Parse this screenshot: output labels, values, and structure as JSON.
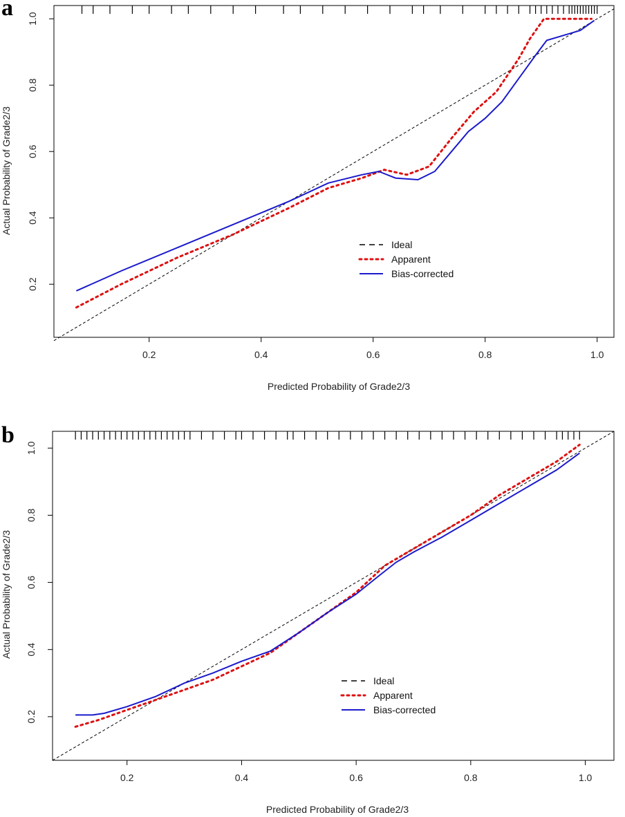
{
  "chart_data": [
    {
      "panel_label": "a",
      "type": "line",
      "title": "",
      "xlabel": "Predicted Probability of Grade2/3",
      "ylabel": "Actual Probability of Grade2/3",
      "xlim": [
        0.03,
        1.03
      ],
      "ylim": [
        0.04,
        1.04
      ],
      "xticks": [
        0.2,
        0.4,
        0.6,
        0.8,
        1.0
      ],
      "xtick_labels": [
        "0.2",
        "0.4",
        "0.6",
        "0.8",
        "1.0"
      ],
      "yticks": [
        0.2,
        0.4,
        0.6,
        0.8,
        1.0
      ],
      "ytick_labels": [
        "0.2",
        "0.4",
        "0.6",
        "0.8",
        "1.0"
      ],
      "legend_position": "center-right",
      "series": [
        {
          "name": "Ideal",
          "style": "dashed",
          "color": "#000000",
          "x": [
            0.03,
            1.03
          ],
          "y": [
            0.03,
            1.03
          ]
        },
        {
          "name": "Apparent",
          "style": "dotted",
          "color": "#dd1111",
          "x": [
            0.07,
            0.15,
            0.25,
            0.35,
            0.45,
            0.52,
            0.58,
            0.62,
            0.66,
            0.7,
            0.74,
            0.78,
            0.82,
            0.86,
            0.88,
            0.905,
            0.95,
            0.99
          ],
          "y": [
            0.13,
            0.2,
            0.28,
            0.35,
            0.43,
            0.49,
            0.52,
            0.545,
            0.53,
            0.555,
            0.64,
            0.72,
            0.78,
            0.88,
            0.94,
            1.0,
            1.0,
            1.0
          ]
        },
        {
          "name": "Bias-corrected",
          "style": "solid",
          "color": "#1a1acc",
          "x": [
            0.07,
            0.15,
            0.25,
            0.35,
            0.45,
            0.52,
            0.58,
            0.61,
            0.64,
            0.68,
            0.71,
            0.74,
            0.77,
            0.8,
            0.83,
            0.86,
            0.89,
            0.91,
            0.95,
            0.97,
            0.995
          ],
          "y": [
            0.18,
            0.24,
            0.31,
            0.38,
            0.45,
            0.505,
            0.53,
            0.54,
            0.52,
            0.515,
            0.54,
            0.6,
            0.66,
            0.7,
            0.75,
            0.82,
            0.89,
            0.935,
            0.955,
            0.965,
            0.995
          ]
        }
      ],
      "rug": [
        0.08,
        0.1,
        0.13,
        0.17,
        0.2,
        0.24,
        0.27,
        0.31,
        0.35,
        0.39,
        0.44,
        0.47,
        0.51,
        0.55,
        0.59,
        0.63,
        0.67,
        0.69,
        0.72,
        0.76,
        0.8,
        0.82,
        0.84,
        0.86,
        0.88,
        0.89,
        0.9,
        0.91,
        0.92,
        0.93,
        0.94,
        0.95,
        0.955,
        0.96,
        0.965,
        0.97,
        0.975,
        0.98,
        0.985,
        0.99,
        0.995,
        1.0
      ]
    },
    {
      "panel_label": "b",
      "type": "line",
      "title": "",
      "xlabel": "Predicted Probability of Grade2/3",
      "ylabel": "Actual Probability of Grade2/3",
      "xlim": [
        0.07,
        1.05
      ],
      "ylim": [
        0.07,
        1.05
      ],
      "xticks": [
        0.2,
        0.4,
        0.6,
        0.8,
        1.0
      ],
      "xtick_labels": [
        "0.2",
        "0.4",
        "0.6",
        "0.8",
        "1.0"
      ],
      "yticks": [
        0.2,
        0.4,
        0.6,
        0.8,
        1.0
      ],
      "ytick_labels": [
        "0.2",
        "0.4",
        "0.6",
        "0.8",
        "1.0"
      ],
      "legend_position": "center-right",
      "series": [
        {
          "name": "Ideal",
          "style": "dashed",
          "color": "#000000",
          "x": [
            0.07,
            1.05
          ],
          "y": [
            0.07,
            1.05
          ]
        },
        {
          "name": "Apparent",
          "style": "dotted",
          "color": "#dd1111",
          "x": [
            0.11,
            0.15,
            0.2,
            0.25,
            0.3,
            0.35,
            0.4,
            0.45,
            0.5,
            0.55,
            0.6,
            0.65,
            0.7,
            0.75,
            0.8,
            0.85,
            0.9,
            0.95,
            0.99
          ],
          "y": [
            0.17,
            0.19,
            0.22,
            0.25,
            0.28,
            0.31,
            0.35,
            0.39,
            0.45,
            0.51,
            0.57,
            0.65,
            0.7,
            0.75,
            0.8,
            0.86,
            0.91,
            0.96,
            1.01
          ]
        },
        {
          "name": "Bias-corrected",
          "style": "solid",
          "color": "#1a1acc",
          "x": [
            0.11,
            0.14,
            0.16,
            0.2,
            0.25,
            0.3,
            0.35,
            0.4,
            0.45,
            0.5,
            0.55,
            0.6,
            0.64,
            0.67,
            0.7,
            0.75,
            0.8,
            0.85,
            0.9,
            0.95,
            0.99
          ],
          "y": [
            0.205,
            0.205,
            0.21,
            0.23,
            0.26,
            0.3,
            0.33,
            0.365,
            0.395,
            0.45,
            0.51,
            0.565,
            0.62,
            0.66,
            0.69,
            0.735,
            0.785,
            0.835,
            0.885,
            0.935,
            0.985
          ]
        }
      ],
      "rug": [
        0.11,
        0.12,
        0.13,
        0.14,
        0.15,
        0.16,
        0.17,
        0.18,
        0.19,
        0.2,
        0.21,
        0.22,
        0.23,
        0.24,
        0.25,
        0.26,
        0.27,
        0.28,
        0.29,
        0.3,
        0.31,
        0.33,
        0.35,
        0.37,
        0.39,
        0.4,
        0.42,
        0.44,
        0.46,
        0.48,
        0.49,
        0.51,
        0.53,
        0.55,
        0.57,
        0.59,
        0.61,
        0.63,
        0.65,
        0.67,
        0.69,
        0.71,
        0.73,
        0.75,
        0.77,
        0.79,
        0.81,
        0.83,
        0.85,
        0.87,
        0.89,
        0.91,
        0.93,
        0.95,
        0.96,
        0.97,
        0.98,
        0.99
      ]
    }
  ]
}
